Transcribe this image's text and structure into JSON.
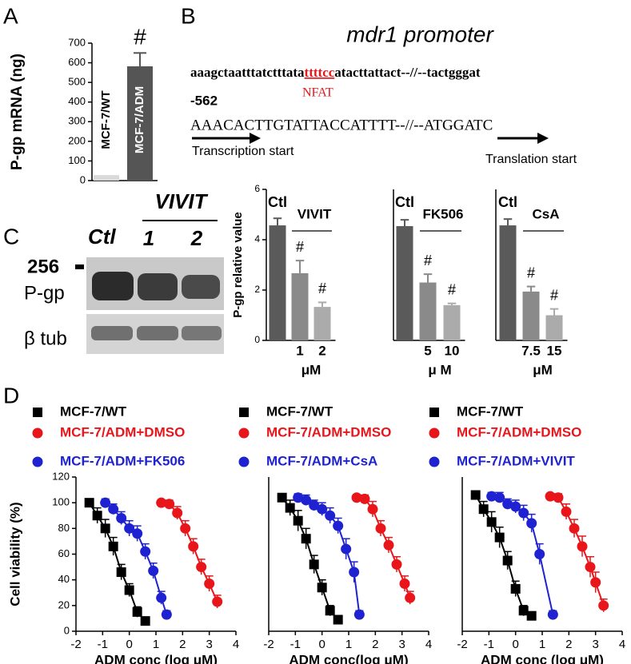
{
  "panel_labels": [
    "A",
    "B",
    "C",
    "D"
  ],
  "panel_b": {
    "title": "mdr1 promoter",
    "sequence_1": [
      "aaagctaatttatctttata",
      "ttttcc",
      "atacttattact--//--tactgggat"
    ],
    "site_label": "NFAT",
    "position": "-562",
    "sequence_2": "AAACACTTGTATTACCATTTT--//--ATGGATC",
    "arrow_1": "Transcription start",
    "arrow_2": "Translation start"
  },
  "panel_c_blot": {
    "size_marker": "256",
    "rows": [
      "P-gp",
      "β tub"
    ],
    "lanes": [
      "Ctl",
      "1",
      "2"
    ],
    "group_label": "VIVIT"
  },
  "chart_data": [
    {
      "type": "bar",
      "ylabel": "P-gp mRNA (ng)",
      "categories": [
        "MCF-7/WT",
        "MCF-7/ADM"
      ],
      "values": [
        28,
        582
      ],
      "errors": [
        null,
        68
      ],
      "colors": [
        "#d9d9d9",
        "#555555"
      ],
      "annotations": [
        null,
        "#"
      ],
      "ylim": [
        0,
        700
      ],
      "yticks": [
        0,
        100,
        200,
        300,
        400,
        500,
        600,
        700
      ]
    },
    {
      "type": "bar",
      "ylabel": "P-gp relative value",
      "categories": [
        "Ctl",
        "1",
        "2"
      ],
      "values": [
        4.57,
        2.67,
        1.33
      ],
      "errors": [
        0.28,
        0.5,
        0.18
      ],
      "colors": [
        "#5a5a5a",
        "#8a8a8a",
        "#ababab"
      ],
      "annotations": [
        null,
        "#",
        "#"
      ],
      "group_label": "VIVIT",
      "xlabel": "μM",
      "ylim": [
        0,
        6
      ],
      "yticks": [
        0,
        2,
        4,
        6
      ]
    },
    {
      "type": "bar",
      "categories": [
        "Ctl",
        "5",
        "10"
      ],
      "values": [
        4.54,
        2.3,
        1.4
      ],
      "errors": [
        0.25,
        0.33,
        0.07
      ],
      "colors": [
        "#5a5a5a",
        "#8a8a8a",
        "#ababab"
      ],
      "annotations": [
        null,
        "#",
        "#"
      ],
      "group_label": "FK506",
      "xlabel": "μ M",
      "ylim": [
        0,
        6
      ]
    },
    {
      "type": "bar",
      "categories": [
        "Ctl",
        "7.5",
        "15"
      ],
      "values": [
        4.57,
        1.94,
        1.0
      ],
      "errors": [
        0.25,
        0.2,
        0.25
      ],
      "colors": [
        "#5a5a5a",
        "#8a8a8a",
        "#ababab"
      ],
      "annotations": [
        null,
        "#",
        "#"
      ],
      "group_label": "CsA",
      "xlabel": "μM",
      "ylim": [
        0,
        6
      ]
    },
    {
      "type": "line",
      "ylabel": "Cell viability (%)",
      "xlabel": "ADM conc (log μM)",
      "xlim": [
        -2,
        4
      ],
      "xticks": [
        -2,
        -1,
        0,
        1,
        2,
        3,
        4
      ],
      "ylim": [
        0,
        120
      ],
      "yticks": [
        0,
        20,
        40,
        60,
        80,
        100,
        120
      ],
      "series": [
        {
          "name": "MCF-7/WT",
          "color": "#000000",
          "marker": "square",
          "x": [
            -1.5,
            -1.2,
            -0.9,
            -0.6,
            -0.3,
            0,
            0.3,
            0.6
          ],
          "values": [
            100,
            90,
            80,
            66,
            46,
            32,
            15,
            8
          ],
          "errors": [
            3,
            6,
            7,
            7,
            6,
            5,
            4,
            3
          ]
        },
        {
          "name": "MCF-7/ADM+DMSO",
          "color": "#e8161b",
          "marker": "circle",
          "x": [
            1.2,
            1.5,
            1.8,
            2.1,
            2.4,
            2.7,
            3.0,
            3.3
          ],
          "values": [
            100,
            99,
            92,
            80,
            66,
            50,
            37,
            23
          ],
          "errors": [
            2,
            3,
            5,
            6,
            6,
            6,
            6,
            5
          ]
        },
        {
          "name": "MCF-7/ADM+FK506",
          "color": "#1f22d0",
          "marker": "circle",
          "x": [
            -0.9,
            -0.6,
            -0.3,
            0,
            0.3,
            0.6,
            0.9,
            1.2,
            1.4
          ],
          "values": [
            100,
            95,
            88,
            80,
            76,
            62,
            47,
            26,
            13
          ],
          "errors": [
            3,
            4,
            5,
            6,
            6,
            6,
            6,
            5,
            3
          ]
        }
      ]
    },
    {
      "type": "line",
      "xlabel": "ADM conc(log μM)",
      "xlim": [
        -2,
        4
      ],
      "xticks": [
        -2,
        -1,
        0,
        1,
        2,
        3,
        4
      ],
      "ylim": [
        0,
        120
      ],
      "series": [
        {
          "name": "MCF-7/WT",
          "color": "#000000",
          "marker": "square",
          "x": [
            -1.5,
            -1.2,
            -0.9,
            -0.6,
            -0.3,
            0,
            0.3,
            0.6
          ],
          "values": [
            104,
            96,
            86,
            72,
            52,
            34,
            16,
            9
          ],
          "errors": [
            3,
            6,
            8,
            8,
            7,
            6,
            4,
            3
          ]
        },
        {
          "name": "MCF-7/ADM+DMSO",
          "color": "#e8161b",
          "marker": "circle",
          "x": [
            1.3,
            1.6,
            1.9,
            2.2,
            2.5,
            2.8,
            3.1,
            3.3
          ],
          "values": [
            104,
            103,
            95,
            80,
            67,
            52,
            37,
            26
          ],
          "errors": [
            2,
            3,
            6,
            6,
            6,
            6,
            6,
            5
          ]
        },
        {
          "name": "MCF-7/ADM+CsA",
          "color": "#1f22d0",
          "marker": "circle",
          "x": [
            -0.9,
            -0.6,
            -0.3,
            0,
            0.3,
            0.6,
            0.9,
            1.2,
            1.4
          ],
          "values": [
            104,
            102,
            98,
            95,
            90,
            82,
            64,
            46,
            13
          ],
          "errors": [
            3,
            4,
            4,
            5,
            6,
            6,
            8,
            8,
            3
          ]
        }
      ]
    },
    {
      "type": "line",
      "xlabel": "ADM conc (log μM)",
      "xlim": [
        -2,
        4
      ],
      "xticks": [
        -2,
        -1,
        0,
        1,
        2,
        3,
        4
      ],
      "ylim": [
        0,
        120
      ],
      "series": [
        {
          "name": "MCF-7/WT",
          "color": "#000000",
          "marker": "square",
          "x": [
            -1.5,
            -1.2,
            -0.9,
            -0.6,
            -0.3,
            0,
            0.3,
            0.6
          ],
          "values": [
            106,
            95,
            85,
            73,
            55,
            33,
            16,
            12
          ],
          "errors": [
            3,
            6,
            8,
            8,
            7,
            6,
            4,
            3
          ]
        },
        {
          "name": "MCF-7/ADM+DMSO",
          "color": "#e8161b",
          "marker": "circle",
          "x": [
            1.3,
            1.6,
            1.9,
            2.2,
            2.5,
            2.8,
            3.0,
            3.3
          ],
          "values": [
            105,
            104,
            93,
            80,
            66,
            50,
            38,
            20
          ],
          "errors": [
            2,
            3,
            6,
            7,
            8,
            8,
            8,
            5
          ]
        },
        {
          "name": "MCF-7/ADM+VIVIT",
          "color": "#1f22d0",
          "marker": "circle",
          "x": [
            -0.9,
            -0.6,
            -0.3,
            0,
            0.3,
            0.6,
            0.9,
            1.4
          ],
          "values": [
            105,
            104,
            99,
            97,
            92,
            84,
            60,
            13
          ],
          "errors": [
            3,
            4,
            4,
            5,
            6,
            7,
            8,
            3
          ]
        }
      ]
    }
  ]
}
